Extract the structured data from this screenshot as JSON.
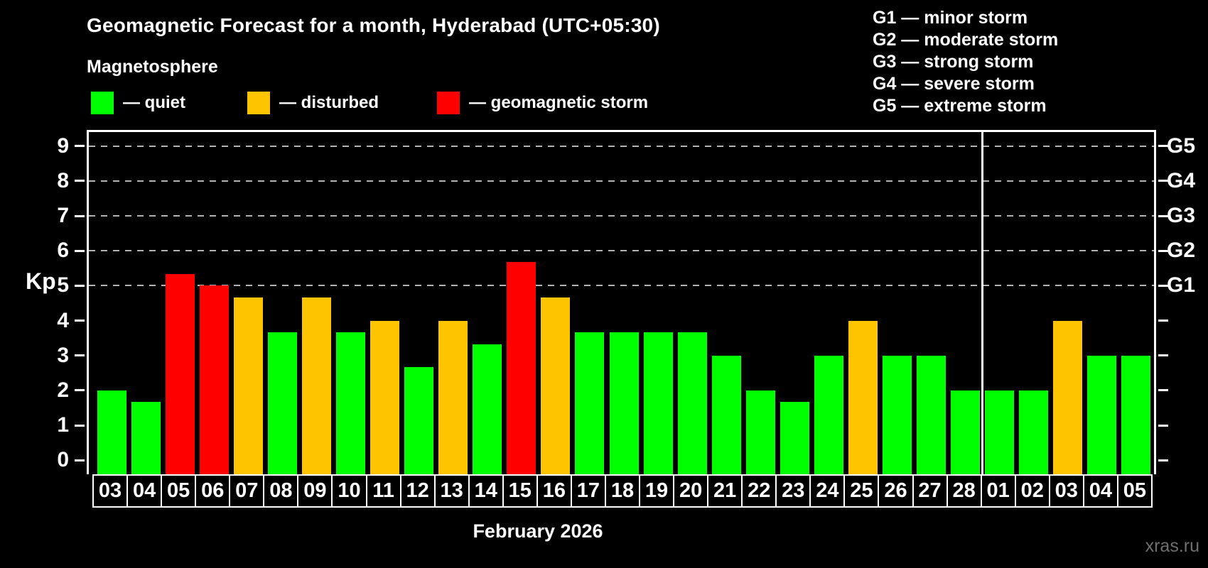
{
  "header": {
    "title": "Geomagnetic Forecast for a month, Hyderabad (UTC+05:30)",
    "subtitle": "Magnetosphere",
    "legend": [
      {
        "key": "quiet",
        "label": "— quiet",
        "color": "#00ff00"
      },
      {
        "key": "disturbed",
        "label": "— disturbed",
        "color": "#ffc400"
      },
      {
        "key": "storm",
        "label": "— geomagnetic storm",
        "color": "#ff0000"
      }
    ],
    "g_scale_legend": [
      "G1 — minor storm",
      "G2 — moderate storm",
      "G3 — strong storm",
      "G4 — severe storm",
      "G5 — extreme storm"
    ]
  },
  "footer": {
    "xaxis_title": "February 2026",
    "watermark": "xras.ru"
  },
  "chart_data": {
    "type": "bar",
    "title": "Geomagnetic Forecast for a month, Hyderabad (UTC+05:30)",
    "xlabel": "February 2026",
    "ylabel": "Kp",
    "ylim": [
      -0.4,
      9.4
    ],
    "yticks": [
      0,
      1,
      2,
      3,
      4,
      5,
      6,
      7,
      8,
      9
    ],
    "grid_values": [
      5,
      6,
      7,
      8,
      9
    ],
    "grid_on": true,
    "grid_color": "#b3b3b3",
    "right_axis": [
      {
        "value": 5,
        "label": "G1"
      },
      {
        "value": 6,
        "label": "G2"
      },
      {
        "value": 7,
        "label": "G3"
      },
      {
        "value": 8,
        "label": "G4"
      },
      {
        "value": 9,
        "label": "G5"
      }
    ],
    "status_colors": {
      "quiet": "#00ff00",
      "disturbed": "#ffc400",
      "storm": "#ff0000"
    },
    "month_separator_before_index": 26,
    "categories": [
      "03",
      "04",
      "05",
      "06",
      "07",
      "08",
      "09",
      "10",
      "11",
      "12",
      "13",
      "14",
      "15",
      "16",
      "17",
      "18",
      "19",
      "20",
      "21",
      "22",
      "23",
      "24",
      "25",
      "26",
      "27",
      "28",
      "01",
      "02",
      "03",
      "04",
      "05"
    ],
    "bars": [
      {
        "day": "03",
        "kp": 2.0,
        "status": "quiet"
      },
      {
        "day": "04",
        "kp": 1.67,
        "status": "quiet"
      },
      {
        "day": "05",
        "kp": 5.33,
        "status": "storm"
      },
      {
        "day": "06",
        "kp": 5.0,
        "status": "storm"
      },
      {
        "day": "07",
        "kp": 4.67,
        "status": "disturbed"
      },
      {
        "day": "08",
        "kp": 3.67,
        "status": "quiet"
      },
      {
        "day": "09",
        "kp": 4.67,
        "status": "disturbed"
      },
      {
        "day": "10",
        "kp": 3.67,
        "status": "quiet"
      },
      {
        "day": "11",
        "kp": 4.0,
        "status": "disturbed"
      },
      {
        "day": "12",
        "kp": 2.67,
        "status": "quiet"
      },
      {
        "day": "13",
        "kp": 4.0,
        "status": "disturbed"
      },
      {
        "day": "14",
        "kp": 3.33,
        "status": "quiet"
      },
      {
        "day": "15",
        "kp": 5.67,
        "status": "storm"
      },
      {
        "day": "16",
        "kp": 4.67,
        "status": "disturbed"
      },
      {
        "day": "17",
        "kp": 3.67,
        "status": "quiet"
      },
      {
        "day": "18",
        "kp": 3.67,
        "status": "quiet"
      },
      {
        "day": "19",
        "kp": 3.67,
        "status": "quiet"
      },
      {
        "day": "20",
        "kp": 3.67,
        "status": "quiet"
      },
      {
        "day": "21",
        "kp": 3.0,
        "status": "quiet"
      },
      {
        "day": "22",
        "kp": 2.0,
        "status": "quiet"
      },
      {
        "day": "23",
        "kp": 1.67,
        "status": "quiet"
      },
      {
        "day": "24",
        "kp": 3.0,
        "status": "quiet"
      },
      {
        "day": "25",
        "kp": 4.0,
        "status": "disturbed"
      },
      {
        "day": "26",
        "kp": 3.0,
        "status": "quiet"
      },
      {
        "day": "27",
        "kp": 3.0,
        "status": "quiet"
      },
      {
        "day": "28",
        "kp": 2.0,
        "status": "quiet"
      },
      {
        "day": "01",
        "kp": 2.0,
        "status": "quiet"
      },
      {
        "day": "02",
        "kp": 2.0,
        "status": "quiet"
      },
      {
        "day": "03",
        "kp": 4.0,
        "status": "disturbed"
      },
      {
        "day": "04",
        "kp": 3.0,
        "status": "quiet"
      },
      {
        "day": "05",
        "kp": 3.0,
        "status": "quiet"
      }
    ]
  }
}
